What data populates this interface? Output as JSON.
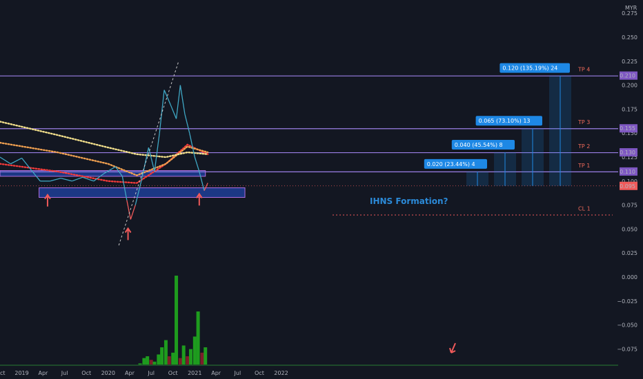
{
  "currency": "MYR",
  "colors": {
    "background": "#131722",
    "price_line": "#3fa7c4",
    "price_line_low": "#f05a5a",
    "level_line": "#9b7fe6",
    "zone_fill": "#2962ff",
    "zone_border": "#b36fe0",
    "target_box": "#1e88e5",
    "target_label": "#f06a5a",
    "formation_text": "#2b8ad8",
    "arrow": "#f05a5a",
    "vol_up": "#1e9c1e",
    "vol_down": "#7d1e2a",
    "ma_fast": "#f03a3a",
    "ma_mid": "#f0a050",
    "ma_slow": "#f3e08c"
  },
  "price_axis": {
    "ticks": [
      "0.275",
      "0.250",
      "0.225",
      "0.200",
      "0.175",
      "0.150",
      "0.125",
      "0.100",
      "0.075",
      "0.050",
      "0.025",
      "0.000",
      "−0.025",
      "−0.050",
      "−0.075"
    ],
    "level_badges": [
      {
        "value": 0.21,
        "text": "0.210"
      },
      {
        "value": 0.155,
        "text": "0.155"
      },
      {
        "value": 0.13,
        "text": "0.130"
      },
      {
        "value": 0.11,
        "text": "0.110"
      }
    ],
    "current_price": {
      "value": 0.095,
      "text": "0.095"
    }
  },
  "time_axis": {
    "labels": [
      "ct",
      "2019",
      "Apr",
      "Jul",
      "Oct",
      "2020",
      "Apr",
      "Jul",
      "Oct",
      "2021",
      "Apr",
      "Jul",
      "Oct",
      "2022"
    ]
  },
  "targets": [
    {
      "label": "TP 4",
      "level": 0.21,
      "box_text": "0.120 (135.19%) 24"
    },
    {
      "label": "TP 3",
      "level": 0.155,
      "box_text": "0.065 (73.10%) 13"
    },
    {
      "label": "TP 2",
      "level": 0.13,
      "box_text": "0.040 (45.54%) 8"
    },
    {
      "label": "TP 1",
      "level": 0.11,
      "box_text": "0.020 (23.44%) 4"
    },
    {
      "label": "CL 1",
      "level": 0.065,
      "box_text": ""
    }
  ],
  "annotations": {
    "formation": "IHNS Formation?"
  },
  "chart_data": {
    "type": "line",
    "title": "",
    "ylim": [
      -0.085,
      0.285
    ],
    "x_range": [
      "2018-10-01",
      "2022-01-15"
    ],
    "series": [
      {
        "values_note_free": true,
        "x": [
          "2018-10-01",
          "2018-11-15",
          "2019-01-01",
          "2019-02-15",
          "2019-03-20",
          "2019-05-01",
          "2019-06-15",
          "2019-08-01",
          "2019-09-15",
          "2019-11-01",
          "2019-12-15",
          "2020-02-01",
          "2020-03-01",
          "2020-03-20",
          "2020-04-05",
          "2020-04-25",
          "2020-05-20",
          "2020-06-20",
          "2020-07-15",
          "2020-08-05",
          "2020-08-25",
          "2020-09-20",
          "2020-10-15",
          "2020-11-01",
          "2020-11-20",
          "2020-12-10",
          "2021-01-01",
          "2021-01-20",
          "2021-02-10",
          "2021-02-25"
        ],
        "y": [
          0.125,
          0.118,
          0.124,
          0.11,
          0.1,
          0.1,
          0.103,
          0.1,
          0.104,
          0.1,
          0.108,
          0.115,
          0.105,
          0.08,
          0.06,
          0.075,
          0.1,
          0.135,
          0.11,
          0.15,
          0.195,
          0.18,
          0.165,
          0.2,
          0.17,
          0.15,
          0.125,
          0.11,
          0.09,
          0.098
        ]
      }
    ],
    "volume": {
      "x": [
        "2020-05-15",
        "2020-06-01",
        "2020-06-15",
        "2020-07-01",
        "2020-07-15",
        "2020-08-01",
        "2020-08-15",
        "2020-09-01",
        "2020-09-15",
        "2020-10-01",
        "2020-10-15",
        "2020-11-01",
        "2020-11-15",
        "2020-12-01",
        "2020-12-15",
        "2021-01-01",
        "2021-01-15",
        "2021-02-01",
        "2021-02-15"
      ],
      "values": [
        2,
        8,
        10,
        6,
        4,
        12,
        20,
        28,
        10,
        14,
        100,
        8,
        22,
        10,
        18,
        32,
        60,
        14,
        20
      ],
      "up": [
        true,
        true,
        true,
        false,
        true,
        true,
        true,
        true,
        false,
        true,
        true,
        false,
        true,
        false,
        true,
        true,
        true,
        false,
        true
      ]
    },
    "moving_averages": [
      {
        "name": "",
        "x": [
          "2018-10-01",
          "2019-06-01",
          "2020-01-01",
          "2020-05-01",
          "2020-09-01",
          "2020-12-01",
          "2021-02-25"
        ],
        "y": [
          0.118,
          0.11,
          0.1,
          0.098,
          0.118,
          0.138,
          0.128
        ]
      },
      {
        "name": "",
        "x": [
          "2018-10-01",
          "2019-06-01",
          "2020-01-01",
          "2020-05-01",
          "2020-09-01",
          "2020-12-01",
          "2021-02-25"
        ],
        "y": [
          0.14,
          0.13,
          0.118,
          0.106,
          0.118,
          0.136,
          0.13
        ]
      },
      {
        "name": "",
        "x": [
          "2018-10-01",
          "2019-06-01",
          "2020-01-01",
          "2020-05-01",
          "2020-09-01",
          "2020-12-01",
          "2021-02-25"
        ],
        "y": [
          0.162,
          0.148,
          0.135,
          0.128,
          0.125,
          0.13,
          0.128
        ]
      }
    ],
    "zones": [
      {
        "x": [
          "2018-10-01",
          "2021-02-15"
        ],
        "y": [
          0.105,
          0.111
        ]
      },
      {
        "x": [
          "2019-03-15",
          "2021-08-01"
        ],
        "y": [
          0.083,
          0.093
        ]
      }
    ],
    "trendline": {
      "x": [
        "2020-02-15",
        "2020-10-25"
      ],
      "y": [
        0.033,
        0.225
      ]
    },
    "markers": [
      {
        "x": "2019-04-20",
        "y": 0.085
      },
      {
        "x": "2020-03-25",
        "y": 0.05
      },
      {
        "x": "2021-01-20",
        "y": 0.086
      }
    ]
  }
}
